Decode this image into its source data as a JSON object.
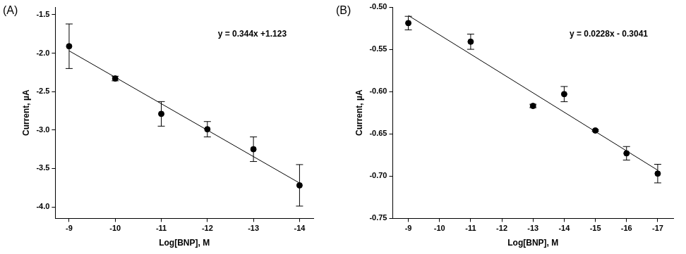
{
  "chart_data": [
    {
      "type": "scatter",
      "title": "(A)",
      "x_label": "Log[BNP], M",
      "y_label": "Current, µA",
      "annotation": "y = 0.344x +1.123",
      "x": [
        -9,
        -10,
        -11,
        -12,
        -13,
        -14
      ],
      "values": [
        -1.91,
        -2.33,
        -2.79,
        -2.99,
        -3.25,
        -3.72
      ],
      "errors": [
        0.29,
        0.03,
        0.16,
        0.1,
        0.16,
        0.27
      ],
      "color": "#000000",
      "marker": "circle",
      "fit_line": {
        "x": [
          -9,
          -14
        ],
        "values": [
          -1.97,
          -3.69
        ],
        "color": "#000000",
        "line_style": "solid"
      },
      "xlim": [
        -8.7,
        -14.3
      ],
      "xticks": [
        -9,
        -10,
        -11,
        -12,
        -13,
        -14
      ],
      "ylim": [
        -4.15,
        -1.4
      ],
      "yticks": [
        {
          "value": -4,
          "label": "-4.0"
        },
        -3.5,
        {
          "value": -3,
          "label": "-3.0"
        },
        -2.5,
        {
          "value": -2,
          "label": "-2.0"
        },
        -1.5
      ],
      "grid": false
    },
    {
      "type": "scatter",
      "title": "(B)",
      "x_label": "Log[BNP], M",
      "y_label": "Current, µA",
      "annotation": "y = 0.0228x - 0.3041",
      "x": [
        -9,
        -11,
        -13,
        -14,
        -15,
        -16,
        -17
      ],
      "values": [
        -0.519,
        -0.541,
        -0.617,
        -0.603,
        -0.646,
        -0.673,
        -0.697
      ],
      "errors": [
        0.008,
        0.009,
        0.002,
        0.009,
        0.001,
        0.008,
        0.011
      ],
      "color": "#000000",
      "marker": "circle",
      "fit_line": {
        "x": [
          -9,
          -17
        ],
        "values": [
          -0.51,
          -0.693
        ],
        "color": "#000000",
        "line_style": "solid"
      },
      "xlim": [
        -8.5,
        -17.5
      ],
      "xticks": [
        -9,
        -10,
        -11,
        -12,
        -13,
        -14,
        -15,
        -16,
        -17
      ],
      "ylim": [
        -0.75,
        -0.5
      ],
      "yticks": [
        {
          "value": -0.5,
          "label": "-0.50"
        },
        -0.55,
        {
          "value": -0.6,
          "label": "-0.60"
        },
        -0.65,
        {
          "value": -0.7,
          "label": "-0.70"
        },
        -0.75
      ],
      "grid": false
    }
  ]
}
